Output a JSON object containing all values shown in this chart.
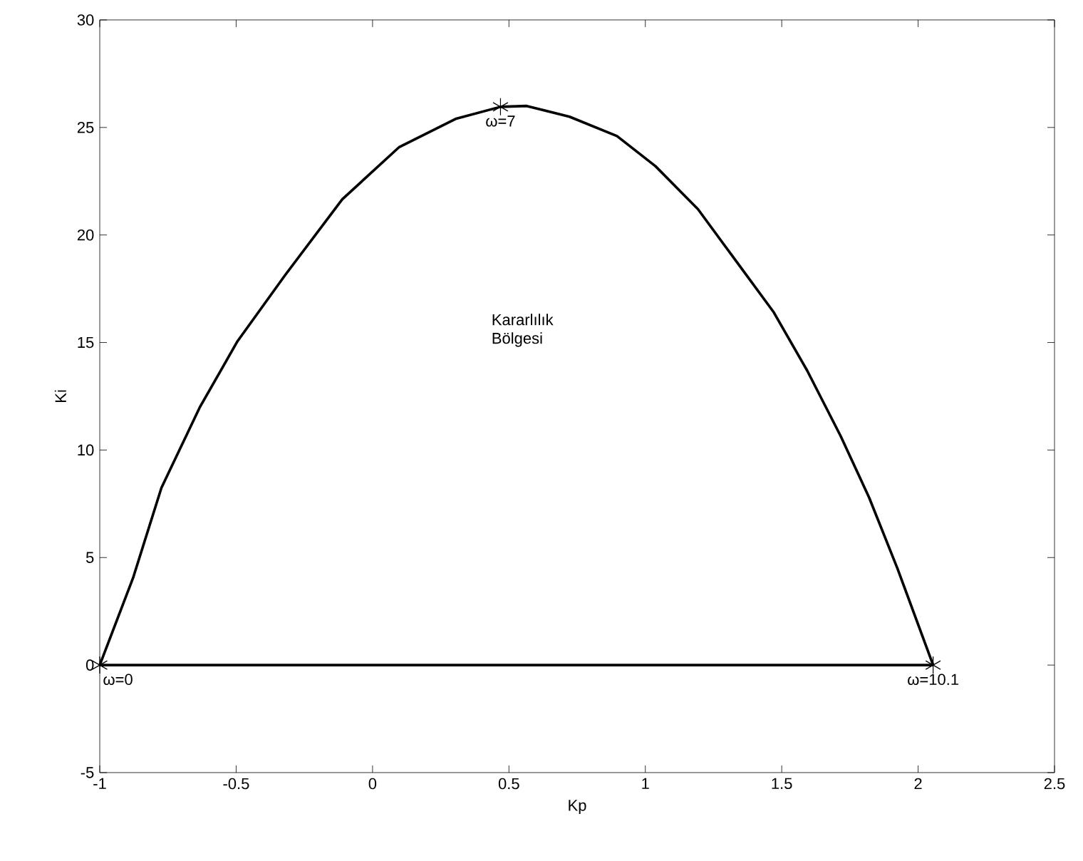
{
  "chart_data": {
    "type": "line",
    "xlabel": "Kp",
    "ylabel": "Ki",
    "xlim": [
      -1,
      2.5
    ],
    "ylim": [
      -5,
      30
    ],
    "xticks": [
      -1,
      -0.5,
      0,
      0.5,
      1,
      1.5,
      2,
      2.5
    ],
    "yticks": [
      -5,
      0,
      5,
      10,
      15,
      20,
      25,
      30
    ],
    "series": [
      {
        "type": "line",
        "color": "#000000",
        "marker": "none",
        "x": [
          -1,
          -0.878,
          -0.774,
          -0.634,
          -0.495,
          -0.32,
          -0.111,
          0.098,
          0.307,
          0.469,
          0.565,
          0.722,
          0.896,
          1.037,
          1.193,
          1.332,
          1.471,
          1.593,
          1.716,
          1.82,
          1.924,
          2.055
        ],
        "values": [
          0,
          4.05,
          8.24,
          11.97,
          15.06,
          18.14,
          21.66,
          24.09,
          25.41,
          25.96,
          26.0,
          25.5,
          24.6,
          23.2,
          21.2,
          18.8,
          16.4,
          13.7,
          10.65,
          7.8,
          4.5,
          0
        ]
      },
      {
        "type": "line",
        "color": "#000000",
        "marker": "none",
        "x": [
          -1,
          2.055
        ],
        "values": [
          0,
          0
        ]
      },
      {
        "type": "scatter",
        "color": "#000000",
        "marker": "cross",
        "x": [
          -1,
          0.469,
          2.055
        ],
        "values": [
          0,
          25.96,
          0
        ]
      }
    ],
    "annotations": [
      {
        "text": "ω=0",
        "x": -1,
        "y": 0
      },
      {
        "text": "ω=7",
        "x": 0.469,
        "y": 25.96
      },
      {
        "text": "ω=10.1",
        "x": 2.055,
        "y": 0
      },
      "Kararlılık Bölgesi"
    ]
  }
}
